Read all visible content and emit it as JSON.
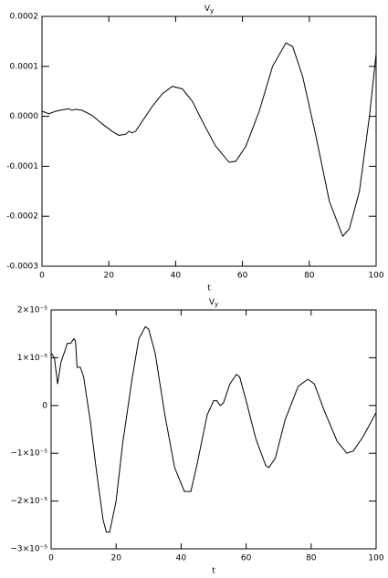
{
  "chart_data": [
    {
      "type": "line",
      "title": "V",
      "title_subscript": "y",
      "xlabel": "t",
      "color": "#000000",
      "xlim": [
        0,
        100
      ],
      "xticks": [
        0,
        20,
        40,
        60,
        80,
        100
      ],
      "ylim": [
        -0.0003,
        0.0002
      ],
      "yticks": [
        {
          "value": -0.0003,
          "label": "-0.0003"
        },
        {
          "value": -0.0002,
          "label": "-0.0002"
        },
        {
          "value": -0.0001,
          "label": "-0.0001"
        },
        {
          "value": 0,
          "label": "0.0000"
        },
        {
          "value": 0.0001,
          "label": "0.0001"
        },
        {
          "value": 0.0002,
          "label": "0.0002"
        }
      ],
      "x": [
        0,
        1,
        2,
        4,
        6,
        8,
        9,
        10,
        12,
        15,
        18,
        21,
        23,
        25,
        26,
        27,
        28,
        30,
        33,
        36,
        39,
        42,
        45,
        48,
        52,
        56,
        58,
        61,
        65,
        69,
        73,
        75,
        78,
        82,
        86,
        90,
        92,
        95,
        98,
        100
      ],
      "series": [
        {
          "name": "Vy",
          "color": "#000000",
          "values": [
            1e-05,
            8e-06,
            5e-06,
            1e-05,
            1.3e-05,
            1.5e-05,
            1.2e-05,
            1.4e-05,
            1.2e-05,
            2e-06,
            -1.5e-05,
            -3e-05,
            -3.8e-05,
            -3.6e-05,
            -3e-05,
            -3.3e-05,
            -3e-05,
            -1e-05,
            2e-05,
            4.5e-05,
            6e-05,
            5.5e-05,
            3e-05,
            -1e-05,
            -6e-05,
            -9.2e-05,
            -9e-05,
            -6e-05,
            1e-05,
            0.0001,
            0.000147,
            0.00014,
            8e-05,
            -4e-05,
            -0.00017,
            -0.00024,
            -0.000225,
            -0.00015,
            0,
            0.000125
          ]
        }
      ]
    },
    {
      "type": "line",
      "title": "V",
      "title_subscript": "y",
      "xlabel": "t",
      "color": "#000000",
      "xlim": [
        0,
        100
      ],
      "xticks": [
        0,
        20,
        40,
        60,
        80,
        100
      ],
      "ylim": [
        -3e-05,
        2e-05
      ],
      "yticks": [
        {
          "value": -3e-05,
          "label": "−3×10⁻⁵"
        },
        {
          "value": -2e-05,
          "label": "−2×10⁻⁵"
        },
        {
          "value": -1e-05,
          "label": "−1×10⁻⁵"
        },
        0,
        {
          "value": 1e-05,
          "label": "1×10⁻⁵"
        },
        {
          "value": 2e-05,
          "label": "2×10⁻⁵"
        }
      ],
      "x": [
        0,
        1,
        2,
        3,
        4,
        5,
        6,
        7,
        7.5,
        8,
        9,
        10,
        12,
        14,
        16,
        17,
        18,
        20,
        22,
        25,
        27,
        29,
        30,
        32,
        35,
        38,
        41,
        43,
        45,
        48,
        50,
        51,
        52,
        53,
        55,
        57,
        58,
        60,
        63,
        66,
        67,
        69,
        72,
        76,
        79,
        81,
        84,
        88,
        91,
        93,
        96,
        100
      ],
      "series": [
        {
          "name": "Vy",
          "color": "#000000",
          "values": [
            1.1e-05,
            1e-05,
            4.5e-06,
            9e-06,
            1.1e-05,
            1.3e-05,
            1.3e-05,
            1.4e-05,
            1.35e-05,
            8e-06,
            8e-06,
            6e-06,
            -3e-06,
            -1.4e-05,
            -2.4e-05,
            -2.65e-05,
            -2.65e-05,
            -2e-05,
            -8e-06,
            6e-06,
            1.4e-05,
            1.65e-05,
            1.6e-05,
            1.1e-05,
            -2e-06,
            -1.3e-05,
            -1.8e-05,
            -1.8e-05,
            -1.2e-05,
            -2e-06,
            1e-06,
            1e-06,
            0,
            5e-07,
            4.5e-06,
            6.5e-06,
            6e-06,
            1e-06,
            -7e-06,
            -1.25e-05,
            -1.3e-05,
            -1.1e-05,
            -3e-06,
            4e-06,
            5.5e-06,
            4.5e-06,
            -1e-06,
            -7.5e-06,
            -1e-05,
            -9.5e-06,
            -6.5e-06,
            -1.5e-06
          ]
        }
      ]
    }
  ]
}
